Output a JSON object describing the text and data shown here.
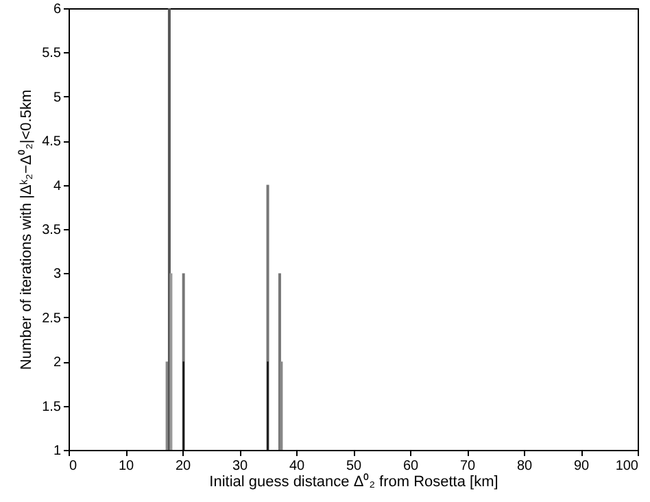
{
  "chart_data": {
    "type": "bar",
    "series": [
      {
        "x": [
          17.3,
          17.7,
          18.0,
          20.2,
          35.0,
          37.1,
          37.4
        ],
        "values": [
          2,
          6,
          3,
          3,
          4,
          3,
          2
        ],
        "colors": [
          "#888888",
          "#555555",
          "#999999",
          "#777777",
          "#777777",
          "#777777",
          "#888888"
        ]
      },
      {
        "x": [
          20.2,
          35.0
        ],
        "values": [
          2,
          2
        ],
        "color": "#111111"
      }
    ],
    "xlabel": "Initial guess distance Δ⁰₂ from Rosetta [km]",
    "ylabel": "Number of iterations with |Δᵏ₂−Δ⁰₂|<0.5km",
    "xlim": [
      0,
      100
    ],
    "xticks": [
      0,
      10,
      20,
      30,
      40,
      50,
      60,
      70,
      80,
      90,
      100
    ],
    "ylim": [
      1,
      6
    ],
    "yticks": [
      1,
      1.5,
      2,
      2.5,
      3,
      3.5,
      4,
      4.5,
      5,
      5.5,
      6
    ],
    "grid": false
  }
}
